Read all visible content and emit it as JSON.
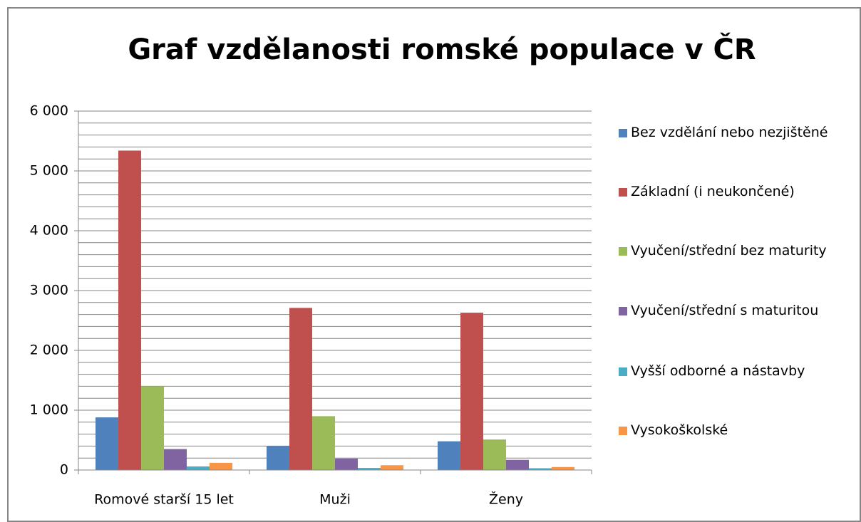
{
  "chart_data": {
    "type": "bar",
    "title": "Graf vzdělanosti romské populace v ČR",
    "categories": [
      "Romové starší 15 let",
      "Muži",
      "Ženy"
    ],
    "series": [
      {
        "name": "Bez vzdělání nebo nezjištěné",
        "color": "#4f81bd",
        "values": [
          880,
          400,
          480
        ]
      },
      {
        "name": "Základní (i neukončené)",
        "color": "#c0504d",
        "values": [
          5340,
          2710,
          2630
        ]
      },
      {
        "name": "Vyučení/střední bez maturity",
        "color": "#9bbb59",
        "values": [
          1400,
          900,
          510
        ]
      },
      {
        "name": "Vyučení/střední s maturitou",
        "color": "#8064a2",
        "values": [
          350,
          190,
          170
        ]
      },
      {
        "name": "Vyšší odborné a nástavby",
        "color": "#4bacc6",
        "values": [
          60,
          35,
          30
        ]
      },
      {
        "name": "Vysokoškolské",
        "color": "#f79646",
        "values": [
          120,
          80,
          50
        ]
      }
    ],
    "ylim": [
      0,
      6000
    ],
    "yticks": [
      0,
      {
        "value": 1000,
        "label": "1 000"
      },
      {
        "value": 2000,
        "label": "2 000"
      },
      {
        "value": 3000,
        "label": "3 000"
      },
      {
        "value": 4000,
        "label": "4 000"
      },
      {
        "value": 5000,
        "label": "5 000"
      },
      {
        "value": 6000,
        "label": "6 000"
      }
    ],
    "minor_yticks": [
      200,
      400,
      600,
      800,
      1200,
      1400,
      1600,
      1800,
      2200,
      2400,
      2600,
      2800,
      3200,
      3400,
      3600,
      3800,
      4200,
      4400,
      4600,
      4800,
      5200,
      5400,
      5600,
      5800
    ],
    "grid": true,
    "legend": "right"
  }
}
